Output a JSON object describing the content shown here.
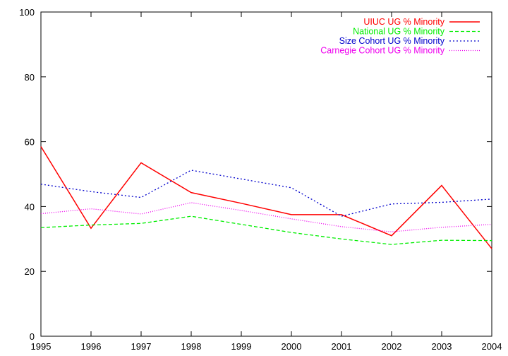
{
  "chart_data": {
    "type": "line",
    "x": [
      1995,
      1996,
      1997,
      1998,
      1999,
      2000,
      2001,
      2002,
      2003,
      2004
    ],
    "xlim": [
      1995,
      2004
    ],
    "ylim": [
      0,
      100
    ],
    "xticks": [
      1995,
      1996,
      1997,
      1998,
      1999,
      2000,
      2001,
      2002,
      2003,
      2004
    ],
    "yticks": [
      0,
      20,
      40,
      60,
      80,
      100
    ],
    "grid": false,
    "legend_position": "top-right",
    "series": [
      {
        "name": "UIUC UG % Minority",
        "color": "#ff0000",
        "style": "solid",
        "values": [
          58.5,
          33.3,
          53.5,
          44.3,
          41.0,
          37.5,
          37.5,
          31.0,
          46.5,
          27.0
        ]
      },
      {
        "name": "National UG % Minority",
        "color": "#00ee00",
        "style": "dashed",
        "values": [
          33.5,
          34.3,
          34.8,
          37.0,
          34.5,
          32.0,
          30.0,
          28.3,
          29.6,
          29.5
        ]
      },
      {
        "name": "Size Cohort UG % Minority",
        "color": "#0000cc",
        "style": "dotted",
        "values": [
          46.9,
          44.6,
          42.8,
          51.2,
          48.5,
          45.8,
          37.0,
          40.8,
          41.3,
          42.3
        ]
      },
      {
        "name": "Carnegie Cohort UG % Minority",
        "color": "#ee00ee",
        "style": "fine-dotted",
        "values": [
          37.8,
          39.3,
          37.7,
          41.2,
          38.8,
          36.2,
          33.8,
          32.2,
          33.6,
          34.5
        ]
      }
    ]
  }
}
